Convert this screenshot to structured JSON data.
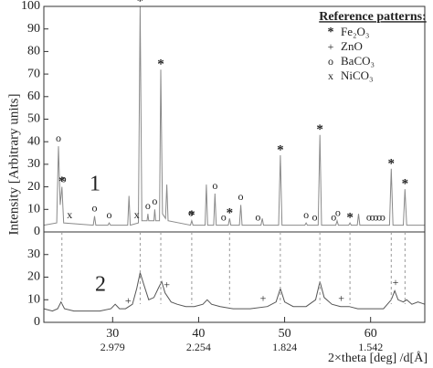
{
  "chart_data": {
    "type": "line",
    "y_label": "Intensity [Arbitrary units]",
    "x_label": "2×theta [deg] /d[Å]",
    "legend_title": "Reference patterns:",
    "xlim": [
      22,
      66.3
    ],
    "xticks": [
      30,
      40,
      50,
      60
    ],
    "x2ticks": [
      {
        "value": 30,
        "label": "2.979"
      },
      {
        "value": 40,
        "label": "2.254"
      },
      {
        "value": 50,
        "label": "1.824"
      },
      {
        "value": 60,
        "label": "1.542"
      }
    ],
    "panels": [
      {
        "label": "1",
        "color": "#8a8a8a",
        "ylim": [
          0,
          100
        ],
        "yticks": [
          0,
          10,
          20,
          30,
          40,
          50,
          60,
          70,
          80,
          90,
          100
        ],
        "x": [
          22.0,
          23.5,
          23.7,
          23.9,
          24.1,
          24.3,
          27.75,
          27.9,
          28.05,
          29.45,
          29.6,
          29.75,
          31.75,
          31.9,
          32.05,
          33.0,
          33.2,
          33.4,
          34.0,
          34.1,
          34.2,
          34.8,
          34.9,
          35.0,
          35.45,
          35.6,
          35.8,
          36.15,
          36.3,
          36.45,
          39.05,
          39.2,
          39.35,
          40.75,
          40.9,
          41.05,
          41.75,
          41.9,
          42.05,
          43.45,
          43.6,
          43.75,
          44.75,
          44.9,
          45.05,
          47.25,
          47.4,
          47.55,
          49.3,
          49.5,
          49.7,
          52.35,
          52.5,
          52.65,
          53.9,
          54.1,
          54.3,
          55.95,
          56.1,
          56.25,
          57.45,
          57.6,
          57.75,
          58.45,
          58.6,
          58.75,
          62.2,
          62.4,
          62.6,
          63.8,
          64.0,
          64.2,
          66.3
        ],
        "values": [
          3,
          4,
          38,
          12,
          20,
          4,
          3,
          7,
          3,
          3,
          4,
          3,
          3,
          16,
          3,
          4,
          100,
          5,
          5,
          8,
          5,
          5,
          10,
          5,
          5,
          72,
          8,
          6,
          21,
          5,
          3,
          5,
          3,
          3,
          21,
          3,
          3,
          17,
          3,
          3,
          6,
          3,
          3,
          12,
          3,
          3,
          6,
          3,
          3,
          34,
          3,
          3,
          4,
          3,
          3,
          43,
          3,
          3,
          5,
          3,
          3,
          4,
          3,
          3,
          8,
          3,
          3,
          28,
          3,
          3,
          19,
          3,
          3
        ]
      },
      {
        "label": "2",
        "color": "#555555",
        "ylim": [
          0,
          40
        ],
        "yticks": [
          0,
          10,
          20,
          30
        ],
        "x": [
          22.0,
          23.0,
          23.6,
          24.0,
          24.4,
          25.5,
          27.0,
          28.5,
          29.8,
          30.3,
          30.8,
          31.5,
          32.3,
          32.8,
          33.2,
          33.6,
          34.2,
          34.8,
          35.3,
          35.7,
          36.1,
          36.8,
          37.5,
          38.5,
          39.5,
          40.5,
          41.0,
          41.5,
          42.5,
          44.0,
          46.0,
          48.0,
          49.0,
          49.5,
          50.0,
          51.0,
          52.5,
          53.6,
          54.1,
          54.6,
          55.5,
          56.5,
          57.5,
          58.5,
          60.0,
          61.5,
          62.4,
          62.8,
          63.2,
          63.8,
          64.2,
          64.8,
          65.5,
          66.3
        ],
        "values": [
          6,
          5,
          6,
          9,
          6,
          5,
          5,
          5,
          6,
          8,
          6,
          6,
          8,
          15,
          22,
          17,
          10,
          11,
          15,
          18,
          13,
          9,
          8,
          7,
          7,
          8,
          10,
          8,
          7,
          6,
          6,
          7,
          9,
          15,
          9,
          7,
          7,
          10,
          18,
          11,
          8,
          7,
          7,
          6,
          6,
          6,
          10,
          14,
          10,
          9,
          10,
          8,
          9,
          8
        ]
      }
    ],
    "reference_patterns": [
      {
        "name": "Fe₂O₃",
        "symbol": "*",
        "panel": 0,
        "positions": [
          24.1,
          33.2,
          35.6,
          39.2,
          43.6,
          49.5,
          54.1,
          57.6,
          62.4,
          64.0
        ]
      },
      {
        "name": "ZnO",
        "symbol": "+",
        "panel": 1,
        "positions": [
          31.8,
          36.3,
          47.5,
          56.6,
          62.9
        ]
      },
      {
        "name": "BaCO₃",
        "symbol": "o",
        "panel": 0,
        "positions": [
          23.7,
          24.3,
          27.9,
          29.6,
          34.1,
          34.9,
          39.1,
          41.9,
          42.9,
          44.9,
          46.9,
          52.5,
          53.5,
          55.7,
          56.2,
          59.8,
          60.2,
          60.6,
          61.0,
          61.4
        ]
      },
      {
        "name": "NiCO₃",
        "symbol": "x",
        "panel": 0,
        "positions": [
          25.0,
          32.8
        ]
      }
    ]
  }
}
